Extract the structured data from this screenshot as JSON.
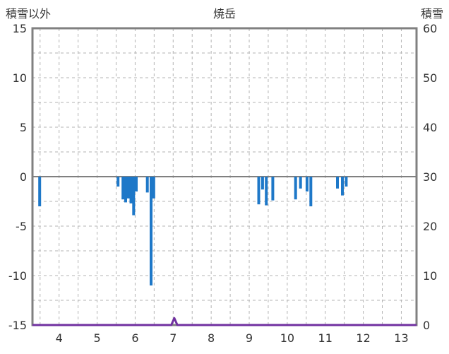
{
  "header": {
    "left_label": "積雪以外",
    "title": "焼岳",
    "right_label": "積雪"
  },
  "chart_data": {
    "type": "bar",
    "title": "焼岳",
    "left_axis": {
      "label": "積雪以外",
      "min": -15,
      "max": 15,
      "ticks": [
        15,
        10,
        5,
        0,
        -5,
        -10,
        -15
      ]
    },
    "right_axis": {
      "label": "積雪",
      "min": 0,
      "max": 60,
      "ticks": [
        60,
        50,
        40,
        30,
        20,
        10,
        0
      ]
    },
    "x_axis": {
      "min": 3.3,
      "max": 13.4,
      "ticks": [
        4,
        5,
        6,
        7,
        8,
        9,
        10,
        11,
        12,
        13
      ],
      "grid_step": 0.5
    },
    "grid": {
      "horizontal_step": 2.5,
      "style": "dashed",
      "zero_line": "solid"
    },
    "bars": [
      {
        "x": 3.49,
        "v": -3.0
      },
      {
        "x": 5.55,
        "v": -1.0
      },
      {
        "x": 5.68,
        "v": -2.3
      },
      {
        "x": 5.75,
        "v": -2.6
      },
      {
        "x": 5.82,
        "v": -2.2
      },
      {
        "x": 5.89,
        "v": -2.7
      },
      {
        "x": 5.96,
        "v": -3.9
      },
      {
        "x": 6.03,
        "v": -1.5
      },
      {
        "x": 6.32,
        "v": -1.6
      },
      {
        "x": 6.42,
        "v": -11.0
      },
      {
        "x": 6.49,
        "v": -2.2
      },
      {
        "x": 9.25,
        "v": -2.8
      },
      {
        "x": 9.35,
        "v": -1.3
      },
      {
        "x": 9.45,
        "v": -2.9
      },
      {
        "x": 9.62,
        "v": -2.4
      },
      {
        "x": 10.22,
        "v": -2.3
      },
      {
        "x": 10.35,
        "v": -1.2
      },
      {
        "x": 10.52,
        "v": -1.5
      },
      {
        "x": 10.62,
        "v": -3.0
      },
      {
        "x": 11.32,
        "v": -1.2
      },
      {
        "x": 11.45,
        "v": -1.9
      },
      {
        "x": 11.55,
        "v": -1.0
      }
    ],
    "snow_line": {
      "label": "積雪",
      "color": "#7030a0",
      "axis": "right",
      "points": [
        [
          3.3,
          0
        ],
        [
          6.95,
          0
        ],
        [
          7.03,
          1.4
        ],
        [
          7.11,
          0
        ],
        [
          13.4,
          0
        ]
      ]
    },
    "colors": {
      "bar": "#1e78c8",
      "grid": "#b3b3b3",
      "frame": "#808080",
      "zero_line": "#808080",
      "text": "#333333",
      "background": "#ffffff"
    }
  }
}
